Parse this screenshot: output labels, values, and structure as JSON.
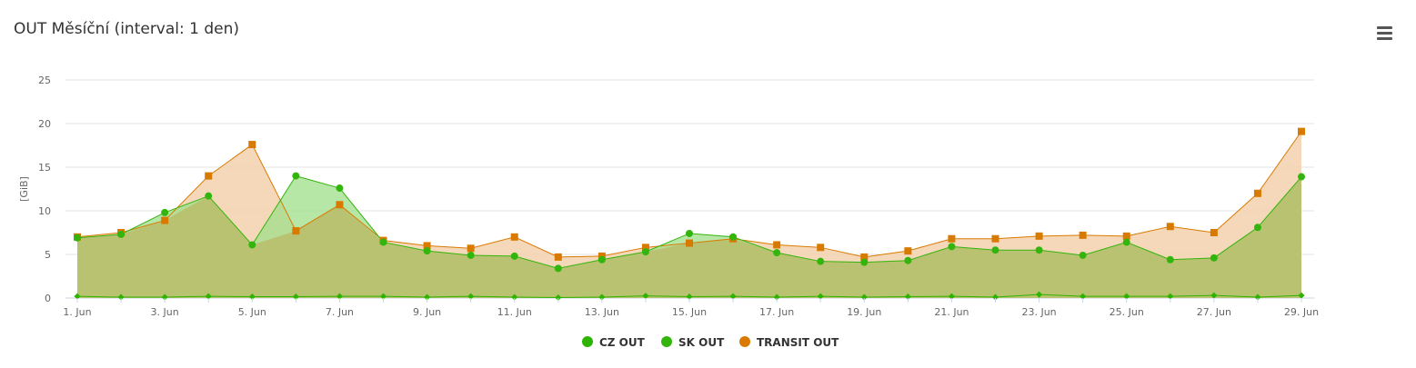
{
  "chart_data": {
    "type": "area",
    "title": "OUT Měsíční (interval: 1 den)",
    "ylabel": "[GiB]",
    "xlabel": "",
    "ylim": [
      0,
      25
    ],
    "yticks": [
      0,
      5,
      10,
      15,
      20,
      25
    ],
    "x": [
      1,
      2,
      3,
      4,
      5,
      6,
      7,
      8,
      9,
      10,
      11,
      12,
      13,
      14,
      15,
      16,
      17,
      18,
      19,
      20,
      21,
      22,
      23,
      24,
      25,
      26,
      27,
      28,
      29
    ],
    "xtick_labels": [
      {
        "x": 1,
        "label": "1. Jun"
      },
      {
        "x": 3,
        "label": "3. Jun"
      },
      {
        "x": 5,
        "label": "5. Jun"
      },
      {
        "x": 7,
        "label": "7. Jun"
      },
      {
        "x": 9,
        "label": "9. Jun"
      },
      {
        "x": 11,
        "label": "11. Jun"
      },
      {
        "x": 13,
        "label": "13. Jun"
      },
      {
        "x": 15,
        "label": "15. Jun"
      },
      {
        "x": 17,
        "label": "17. Jun"
      },
      {
        "x": 19,
        "label": "19. Jun"
      },
      {
        "x": 21,
        "label": "21. Jun"
      },
      {
        "x": 23,
        "label": "23. Jun"
      },
      {
        "x": 25,
        "label": "25. Jun"
      },
      {
        "x": 27,
        "label": "27. Jun"
      },
      {
        "x": 29,
        "label": "29. Jun"
      }
    ],
    "grid": true,
    "legend_position": "bottom-center",
    "series": [
      {
        "name": "CZ OUT",
        "color": "#2db300",
        "fill": "#a6e28f",
        "marker": "diamond",
        "values": [
          0.2,
          0.1,
          0.1,
          0.2,
          0.15,
          0.15,
          0.2,
          0.2,
          0.1,
          0.2,
          0.1,
          0.05,
          0.1,
          0.25,
          0.15,
          0.2,
          0.1,
          0.2,
          0.1,
          0.15,
          0.2,
          0.1,
          0.4,
          0.2,
          0.2,
          0.2,
          0.3,
          0.1,
          0.3
        ]
      },
      {
        "name": "SK OUT",
        "color": "#33b50d",
        "fill": "#9fdf8a",
        "marker": "circle",
        "values": [
          6.9,
          7.3,
          9.8,
          11.7,
          6.1,
          14.0,
          12.6,
          6.4,
          5.4,
          4.9,
          4.8,
          3.4,
          4.4,
          5.3,
          7.4,
          7.0,
          5.2,
          4.2,
          4.1,
          4.3,
          5.9,
          5.5,
          5.5,
          4.9,
          6.4,
          4.4,
          4.6,
          8.1,
          13.9
        ]
      },
      {
        "name": "TRANSIT OUT",
        "color": "#d97a00",
        "fill": "#f3cea7",
        "marker": "square",
        "values": [
          7.0,
          7.5,
          8.9,
          14.0,
          17.6,
          7.7,
          10.7,
          6.6,
          6.0,
          5.7,
          7.0,
          4.7,
          4.8,
          5.8,
          6.3,
          6.8,
          6.1,
          5.8,
          4.7,
          5.4,
          6.8,
          6.8,
          7.1,
          7.2,
          7.1,
          8.2,
          7.5,
          12.0,
          19.1
        ]
      }
    ]
  }
}
